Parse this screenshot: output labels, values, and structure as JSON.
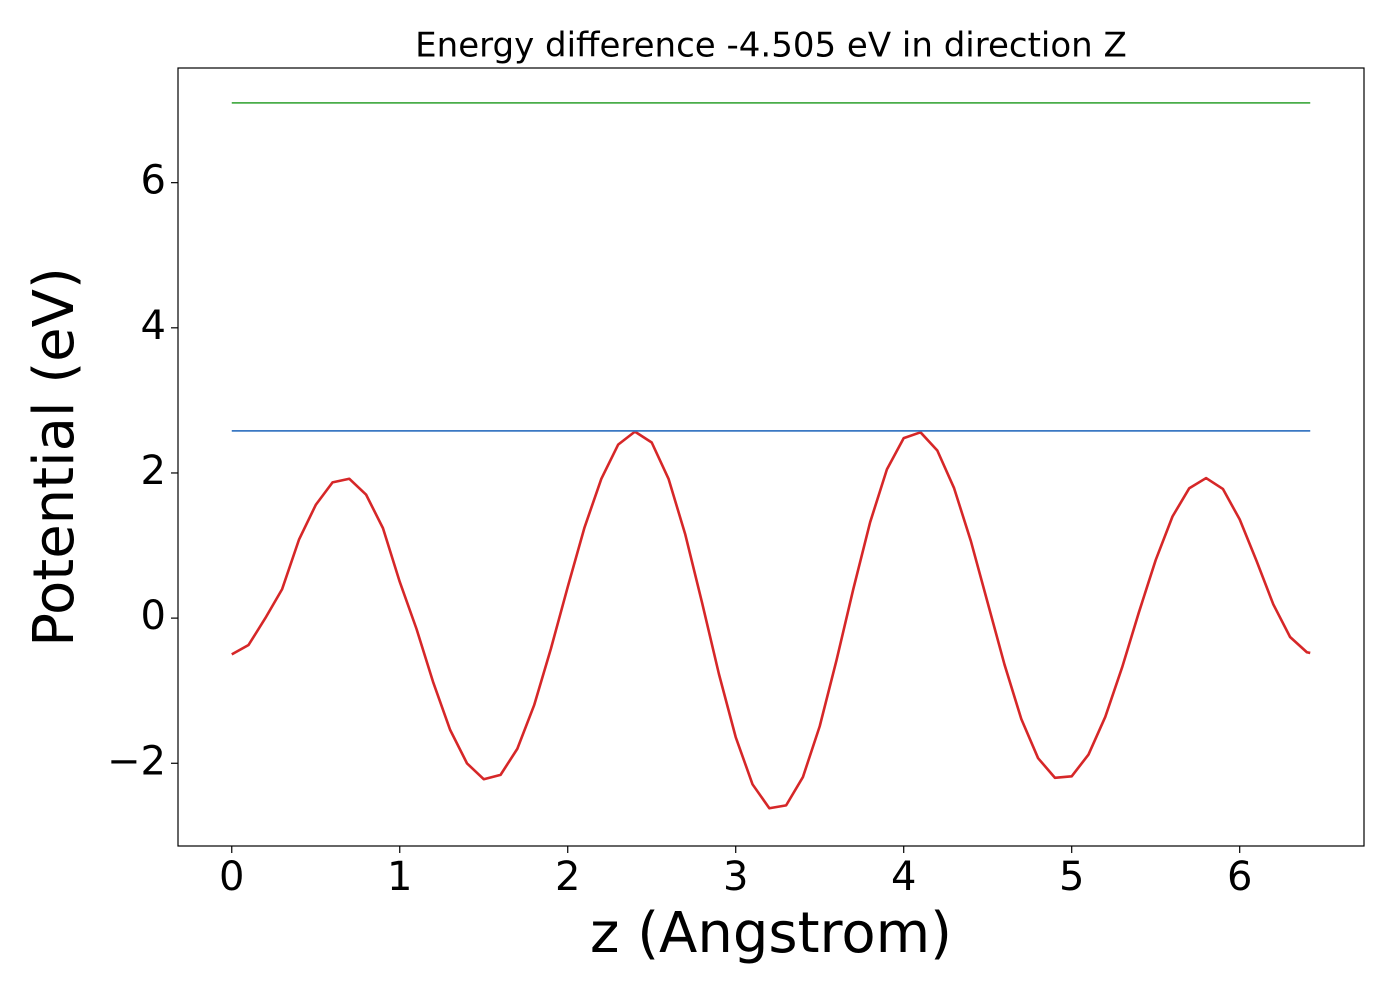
{
  "chart_data": {
    "type": "line",
    "title": "Energy difference -4.505 eV in direction Z",
    "x_label": "z (Angstrom)",
    "y_label": "Potential (eV)",
    "xlim": [
      -0.32,
      6.74
    ],
    "ylim": [
      -3.14,
      7.58
    ],
    "xticks": [
      0,
      1,
      2,
      3,
      4,
      5,
      6
    ],
    "yticks": [
      {
        "value": -2,
        "label": "−2"
      },
      0,
      2,
      4,
      6
    ],
    "grid": false,
    "series": [
      {
        "color": "#d62728",
        "x": [
          0,
          0.1,
          0.2,
          0.3,
          0.4,
          0.5,
          0.6,
          0.7,
          0.8,
          0.9,
          1.0,
          1.1,
          1.2,
          1.3,
          1.4,
          1.5,
          1.6,
          1.7,
          1.8,
          1.9,
          2.0,
          2.1,
          2.2,
          2.3,
          2.4,
          2.5,
          2.6,
          2.7,
          2.8,
          2.9,
          3.0,
          3.1,
          3.2,
          3.3,
          3.4,
          3.5,
          3.6,
          3.7,
          3.8,
          3.9,
          4.0,
          4.1,
          4.2,
          4.3,
          4.4,
          4.5,
          4.6,
          4.7,
          4.8,
          4.9,
          5.0,
          5.1,
          5.2,
          5.3,
          5.4,
          5.5,
          5.6,
          5.7,
          5.8,
          5.9,
          6.0,
          6.1,
          6.2,
          6.3,
          6.4,
          6.42
        ],
        "values": [
          -0.5,
          -0.37,
          0.0,
          0.4,
          1.08,
          1.56,
          1.87,
          1.92,
          1.7,
          1.24,
          0.5,
          -0.15,
          -0.89,
          -1.54,
          -2.0,
          -2.22,
          -2.16,
          -1.8,
          -1.2,
          -0.42,
          0.43,
          1.25,
          1.92,
          2.39,
          2.57,
          2.42,
          1.92,
          1.15,
          0.21,
          -0.77,
          -1.64,
          -2.29,
          -2.62,
          -2.58,
          -2.19,
          -1.49,
          -0.58,
          0.4,
          1.32,
          2.05,
          2.48,
          2.56,
          2.31,
          1.79,
          1.06,
          0.21,
          -0.64,
          -1.39,
          -1.93,
          -2.2,
          -2.18,
          -1.88,
          -1.36,
          -0.68,
          0.08,
          0.8,
          1.4,
          1.79,
          1.93,
          1.78,
          1.36,
          0.79,
          0.19,
          -0.26,
          -0.47,
          -0.48
        ]
      },
      {
        "color": "#3a78c3",
        "x": [
          0,
          6.42
        ],
        "values": [
          2.58,
          2.58
        ]
      },
      {
        "color": "#4aad4a",
        "x": [
          0,
          6.42
        ],
        "values": [
          7.1,
          7.1
        ]
      }
    ]
  }
}
